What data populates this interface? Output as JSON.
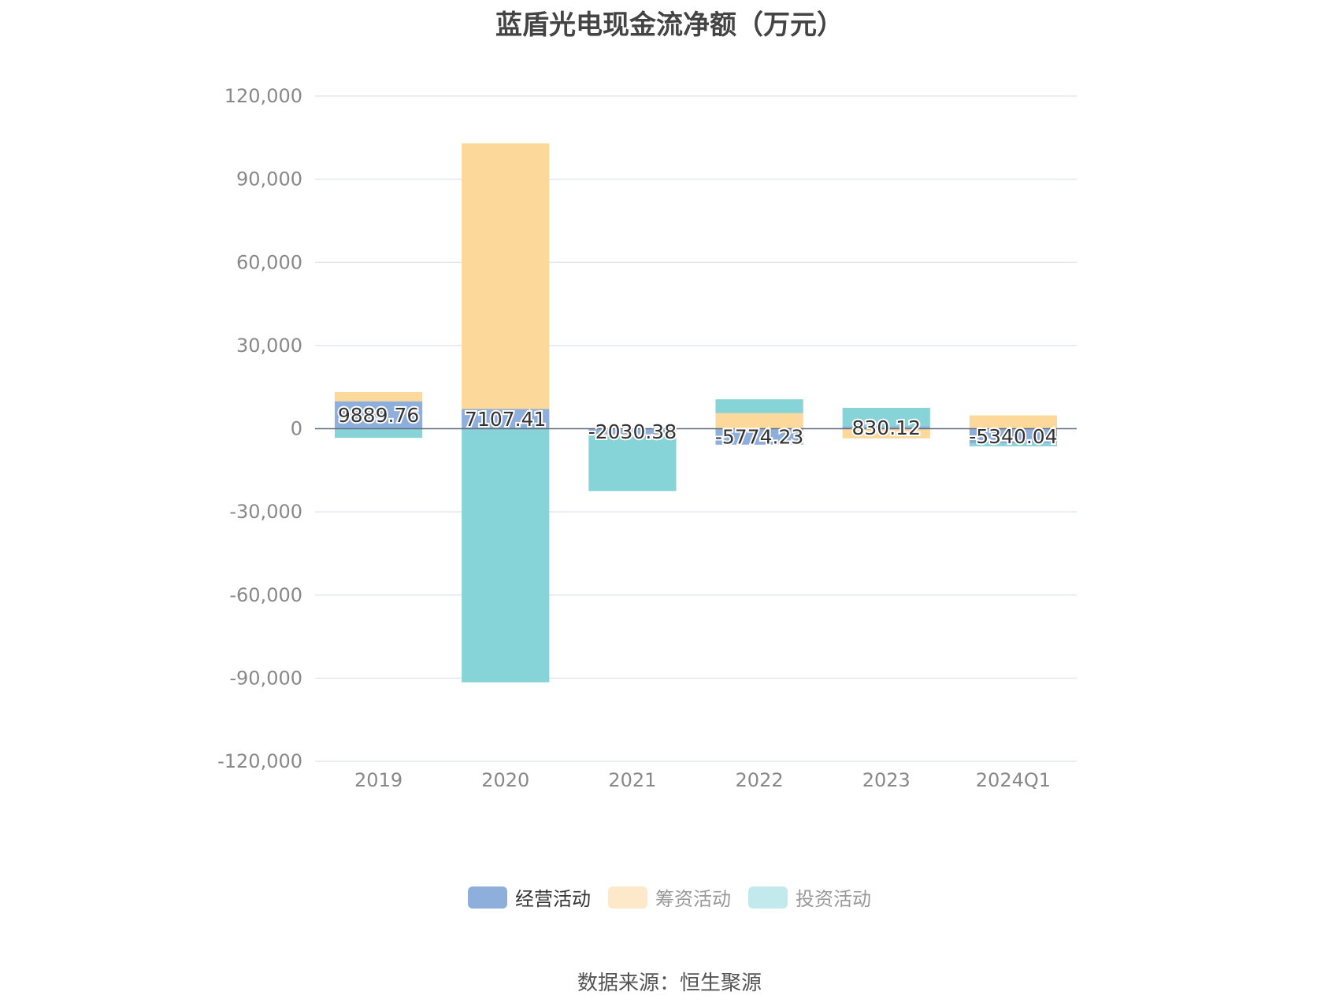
{
  "chart_data": {
    "type": "bar",
    "stacked": true,
    "title": "蓝盾光电现金流净额（万元）",
    "categories": [
      "2019",
      "2020",
      "2021",
      "2022",
      "2023",
      "2024Q1"
    ],
    "ylim": [
      -120000,
      120000
    ],
    "yticks": [
      120000,
      90000,
      60000,
      30000,
      0,
      -30000,
      -60000,
      -90000,
      -120000
    ],
    "ytick_labels": [
      "120,000",
      "90,000",
      "60,000",
      "30,000",
      "0",
      "-30,000",
      "-60,000",
      "-90,000",
      "-120,000"
    ],
    "grid": true,
    "legend_position": "bottom",
    "series": [
      {
        "name": "经营活动",
        "color": "#8eaedb",
        "values": [
          9889.76,
          7107.41,
          -2030.38,
          -5774.23,
          830.12,
          -5340.04
        ],
        "show_labels": true
      },
      {
        "name": "筹资活动",
        "color": "#fdd89b",
        "values": [
          3300,
          95800,
          -500,
          5600,
          -3500,
          4800
        ],
        "show_labels": false
      },
      {
        "name": "投资活动",
        "color": "#87d4d8",
        "values": [
          -3300,
          -91500,
          -20000,
          5000,
          6700,
          -1000
        ],
        "show_labels": false
      }
    ],
    "data_labels": [
      "9889.76",
      "7107.41",
      "-2030.38",
      "-5774.23",
      "830.12",
      "-5340.04"
    ]
  },
  "legend": {
    "items": [
      {
        "label": "经营活动",
        "color": "#8eaedb",
        "text_color": "#333333"
      },
      {
        "label": "筹资活动",
        "color": "#fde9c9",
        "text_color": "#999999"
      },
      {
        "label": "投资活动",
        "color": "#c2e9eb",
        "text_color": "#999999"
      }
    ]
  },
  "source": "数据来源：恒生聚源"
}
